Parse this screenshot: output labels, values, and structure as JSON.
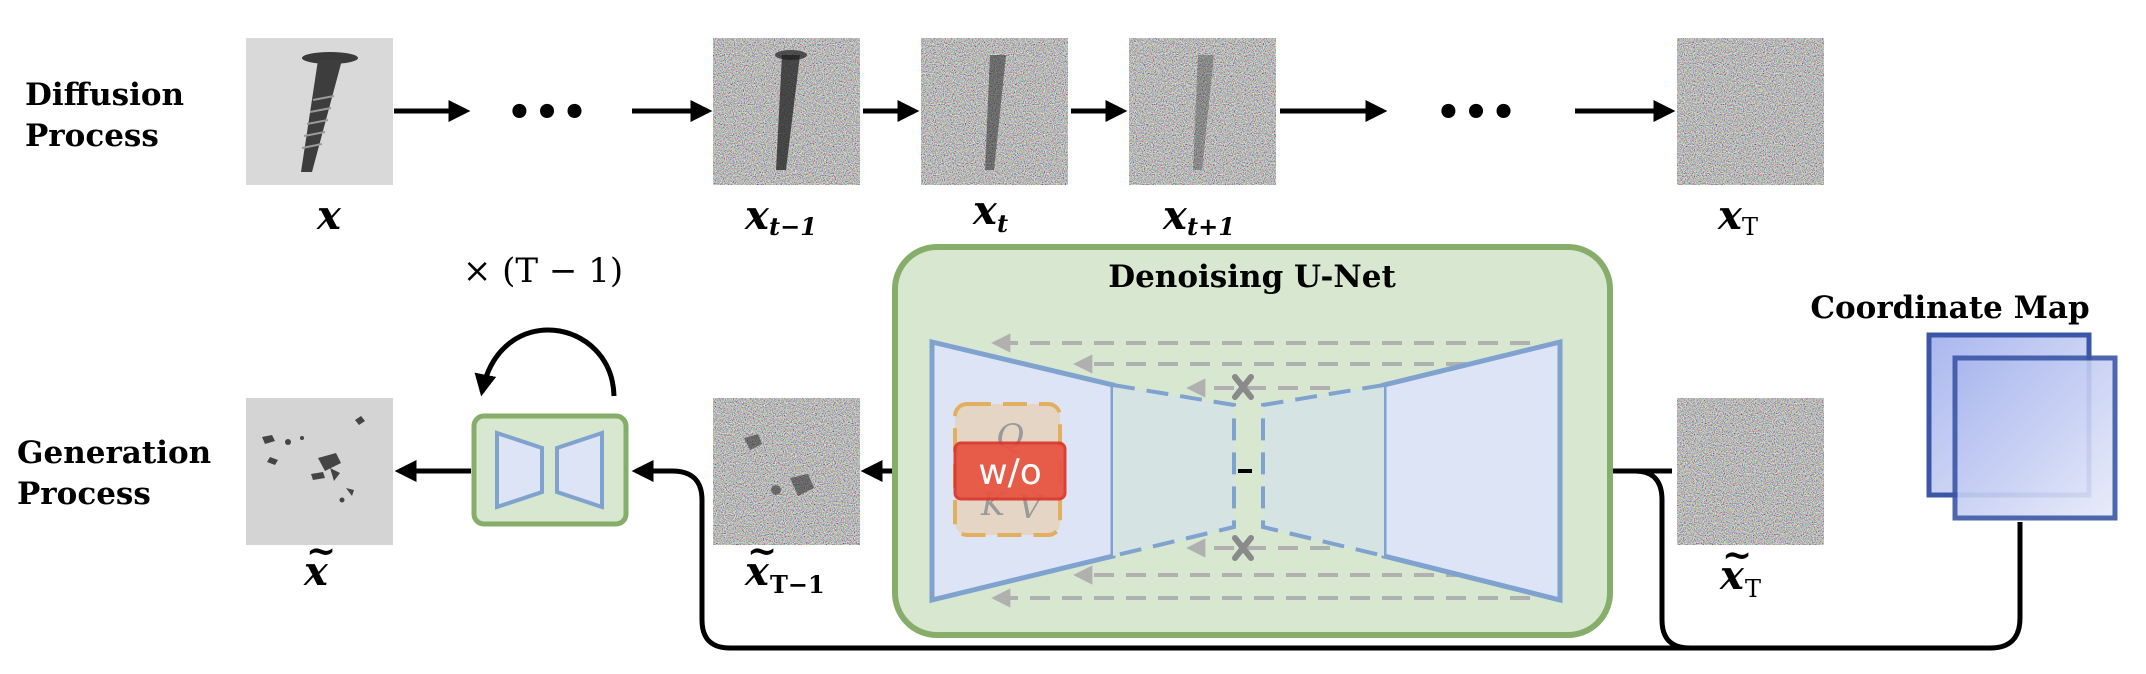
{
  "row_labels": {
    "diffusion": "Diffusion\nProcess",
    "generation": "Generation\nProcess"
  },
  "titles": {
    "unet": "Denoising U-Net",
    "coord_map": "Coordinate Map"
  },
  "repeat_label": "× (T − 1)",
  "badge": "w/o",
  "qkv": {
    "q": "Q",
    "k": "K",
    "v": "V"
  },
  "ellipsis": "•••",
  "var_labels": {
    "x": "x",
    "x_tm1": "x",
    "x_t": "x",
    "x_tp1": "x",
    "x_T": "x",
    "xt_tilde": "x",
    "xt_Tm1": "x",
    "xt_T": "x"
  },
  "subscripts": {
    "x_tm1": "t−1",
    "x_t": "t",
    "x_tp1": "t+1",
    "x_T": "T",
    "xt_Tm1": "T−1",
    "xt_T": "T"
  },
  "tilde": "~",
  "colors": {
    "unet_bg": "#d8e7d0",
    "unet_border": "#86ad6a",
    "trap_fill": "#dde4f6",
    "trap_stroke": "#7fa2cf",
    "dash_gray": "#b0b0b0",
    "badge_red": "#e8523f",
    "badge_frame": "#e3a33a",
    "coord_blue": "#3b56a6"
  }
}
